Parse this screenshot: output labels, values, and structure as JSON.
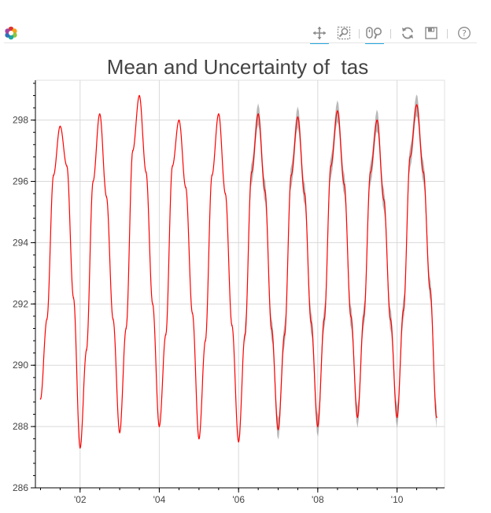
{
  "toolbar": {
    "tools": [
      {
        "name": "pan-tool-icon",
        "active": true
      },
      {
        "name": "box-zoom-tool-icon",
        "active": false
      },
      {
        "name": "wheel-zoom-tool-icon",
        "active": true
      },
      {
        "name": "reset-tool-icon",
        "active": false
      },
      {
        "name": "save-tool-icon",
        "active": false
      },
      {
        "name": "help-tool-icon",
        "active": false
      }
    ]
  },
  "colors": {
    "mean_line": "#ff0000",
    "uncertainty_band": "#808080",
    "grid": "#d9d9d9",
    "axis": "#000000"
  },
  "chart_data": {
    "type": "line",
    "title": "Mean and Uncertainty of  tas",
    "xlabel": "",
    "ylabel": "",
    "x_axis_type": "date",
    "xlim": [
      "2000-11-15",
      "2011-03-15"
    ],
    "ylim": [
      286,
      299.3
    ],
    "x_ticks": [
      {
        "value": "2002-01-01",
        "label": "'02"
      },
      {
        "value": "2004-01-01",
        "label": "'04"
      },
      {
        "value": "2006-01-01",
        "label": "'06"
      },
      {
        "value": "2008-01-01",
        "label": "'08"
      },
      {
        "value": "2010-01-01",
        "label": "'10"
      }
    ],
    "y_ticks": [
      286,
      288,
      290,
      292,
      294,
      296,
      298
    ],
    "grid": true,
    "series": [
      {
        "name": "",
        "style": "line",
        "color": "#ff0000",
        "points": [
          [
            "2001-01-01",
            288.9
          ],
          [
            "2001-03-01",
            291.5
          ],
          [
            "2001-05-01",
            296.2
          ],
          [
            "2001-07-01",
            297.8
          ],
          [
            "2001-09-01",
            296.5
          ],
          [
            "2001-11-01",
            292.2
          ],
          [
            "2002-01-01",
            287.3
          ],
          [
            "2002-03-01",
            290.5
          ],
          [
            "2002-05-01",
            296.0
          ],
          [
            "2002-07-01",
            298.2
          ],
          [
            "2002-09-01",
            295.5
          ],
          [
            "2002-11-01",
            291.5
          ],
          [
            "2003-01-01",
            287.8
          ],
          [
            "2003-03-01",
            291.2
          ],
          [
            "2003-05-01",
            297.0
          ],
          [
            "2003-07-01",
            298.8
          ],
          [
            "2003-09-01",
            296.3
          ],
          [
            "2003-11-01",
            292.0
          ],
          [
            "2004-01-01",
            288.0
          ],
          [
            "2004-03-01",
            291.0
          ],
          [
            "2004-05-01",
            296.5
          ],
          [
            "2004-07-01",
            298.0
          ],
          [
            "2004-09-01",
            295.8
          ],
          [
            "2004-11-01",
            291.7
          ],
          [
            "2005-01-01",
            287.6
          ],
          [
            "2005-03-01",
            290.8
          ],
          [
            "2005-05-01",
            296.2
          ],
          [
            "2005-07-01",
            298.2
          ],
          [
            "2005-09-01",
            295.6
          ],
          [
            "2005-11-01",
            291.3
          ],
          [
            "2006-01-01",
            287.5
          ],
          [
            "2006-03-01",
            291.0
          ],
          [
            "2006-05-01",
            296.3
          ],
          [
            "2006-07-01",
            298.2
          ],
          [
            "2006-09-01",
            295.7
          ],
          [
            "2006-11-01",
            291.2
          ],
          [
            "2007-01-01",
            287.9
          ],
          [
            "2007-03-01",
            291.0
          ],
          [
            "2007-05-01",
            296.2
          ],
          [
            "2007-07-01",
            298.1
          ],
          [
            "2007-09-01",
            295.6
          ],
          [
            "2007-11-01",
            291.4
          ],
          [
            "2008-01-01",
            288.0
          ],
          [
            "2008-03-01",
            291.5
          ],
          [
            "2008-05-01",
            296.5
          ],
          [
            "2008-07-01",
            298.3
          ],
          [
            "2008-09-01",
            295.9
          ],
          [
            "2008-11-01",
            291.6
          ],
          [
            "2009-01-01",
            288.3
          ],
          [
            "2009-03-01",
            291.6
          ],
          [
            "2009-05-01",
            296.3
          ],
          [
            "2009-07-01",
            298.0
          ],
          [
            "2009-09-01",
            295.4
          ],
          [
            "2009-11-01",
            291.5
          ],
          [
            "2010-01-01",
            288.3
          ],
          [
            "2010-03-01",
            291.8
          ],
          [
            "2010-05-01",
            296.8
          ],
          [
            "2010-07-01",
            298.5
          ],
          [
            "2010-09-01",
            296.3
          ],
          [
            "2010-11-01",
            292.5
          ],
          [
            "2011-01-01",
            288.3
          ]
        ]
      },
      {
        "name": "",
        "style": "band",
        "color": "#808080",
        "start": "2006-03-01",
        "end": "2011-01-01",
        "half_width": 0.35
      }
    ]
  }
}
